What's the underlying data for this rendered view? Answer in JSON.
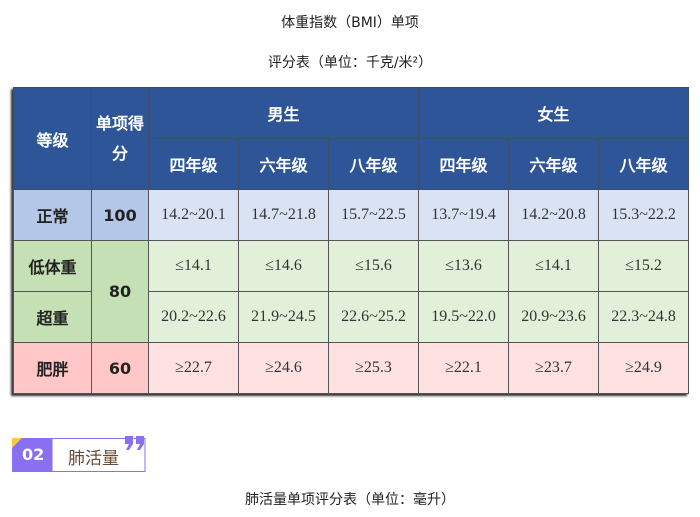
{
  "title": "体重指数（BMI）单项",
  "subtitle": "评分表（单位：千克/米²）",
  "table": {
    "h_grade": "等级",
    "h_score": "单项得分",
    "boys": "男生",
    "girls": "女生",
    "grades": [
      "四年级",
      "六年级",
      "八年级",
      "四年级",
      "六年级",
      "八年级"
    ],
    "rows": [
      {
        "label": "正常",
        "score": "100",
        "values": [
          "14.2~20.1",
          "14.7~21.8",
          "15.7~22.5",
          "13.7~19.4",
          "14.2~20.8",
          "15.3~22.2"
        ]
      },
      {
        "label": "低体重",
        "score": "80",
        "values": [
          "≤14.1",
          "≤14.6",
          "≤15.6",
          "≤13.6",
          "≤14.1",
          "≤15.2"
        ]
      },
      {
        "label": "超重",
        "values": [
          "20.2~22.6",
          "21.9~24.5",
          "22.6~25.2",
          "19.5~22.0",
          "20.9~23.6",
          "22.3~24.8"
        ]
      },
      {
        "label": "肥胖",
        "score": "60",
        "values": [
          "≥22.7",
          "≥24.6",
          "≥25.3",
          "≥22.1",
          "≥23.7",
          "≥24.9"
        ]
      }
    ]
  },
  "section": {
    "number": "02",
    "title": "肺活量",
    "accent": "#8a70f0"
  },
  "caption": "肺活量单项评分表（单位：毫升）"
}
